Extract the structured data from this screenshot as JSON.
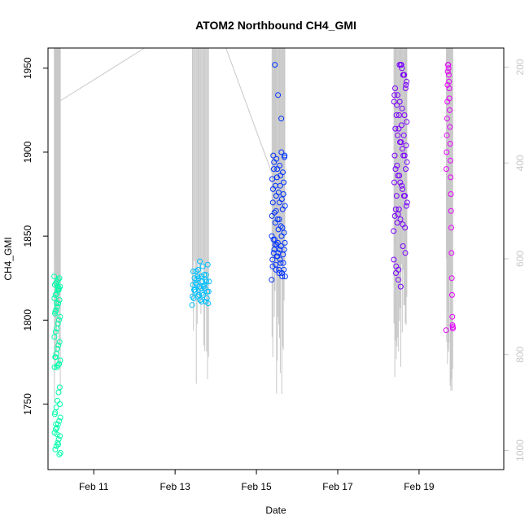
{
  "chart_data": {
    "type": "scatter",
    "title": "ATOM2 Northbound CH4_GMI",
    "xlabel": "Date",
    "ylabel": "CH4_GMI",
    "xlim": [
      "2017-02-09 21:00",
      "2017-02-21 02:00"
    ],
    "ylim": [
      1711,
      1962
    ],
    "x_ticks": [
      {
        "date": "2017-02-11",
        "label": "Feb 11"
      },
      {
        "date": "2017-02-13",
        "label": "Feb 13"
      },
      {
        "date": "2017-02-15",
        "label": "Feb 15"
      },
      {
        "date": "2017-02-17",
        "label": "Feb 17"
      },
      {
        "date": "2017-02-19",
        "label": "Feb 19"
      }
    ],
    "y_ticks": [
      1750,
      1800,
      1850,
      1900,
      1950
    ],
    "right_axis": {
      "description": "pressure profile drawn as grey lines, inverted scale",
      "lim": [
        1040,
        160
      ],
      "ticks": [
        200,
        400,
        600,
        800,
        1000
      ],
      "color": "#c8c8c8"
    },
    "grid": false,
    "legend": "none",
    "point_colors": {
      "flight_1": "#00ffaa",
      "flight_2": "#00bfff",
      "flight_3": "#0033ff",
      "flight_4": "#7a00ff",
      "flight_5": "#e600ff"
    },
    "series": [
      {
        "flight": "flight_1",
        "x_range": [
          "2017-02-10 00:40",
          "2017-02-10 04:20"
        ],
        "y": [
          1826,
          1825,
          1824,
          1823,
          1822,
          1821,
          1820,
          1819,
          1818,
          1816,
          1815,
          1813,
          1812,
          1810,
          1808,
          1806,
          1804,
          1802,
          1800,
          1798,
          1795,
          1793,
          1790,
          1787,
          1785,
          1783,
          1780,
          1778,
          1776,
          1774,
          1773,
          1772,
          1778,
          1772,
          1760,
          1757,
          1752,
          1748,
          1745,
          1742,
          1740,
          1738,
          1736,
          1735,
          1733,
          1731,
          1729,
          1727,
          1725,
          1723,
          1721,
          1720,
          1726,
          1732,
          1738,
          1744,
          1750,
          1818,
          1820,
          1810,
          1805
        ]
      },
      {
        "flight": "flight_2",
        "x_range": [
          "2017-02-13 10:00",
          "2017-02-13 20:00"
        ],
        "y": [
          1809,
          1811,
          1813,
          1815,
          1817,
          1819,
          1821,
          1823,
          1825,
          1810,
          1812,
          1814,
          1816,
          1818,
          1820,
          1822,
          1824,
          1826,
          1813,
          1815,
          1817,
          1819,
          1821,
          1823,
          1825,
          1827,
          1829,
          1811,
          1814,
          1817,
          1820,
          1823,
          1826,
          1829,
          1832,
          1818,
          1821,
          1824,
          1827,
          1830,
          1833,
          1835
        ]
      },
      {
        "flight": "flight_3",
        "x_range": [
          "2017-02-15 09:00",
          "2017-02-15 17:00"
        ],
        "y": [
          1824,
          1826,
          1828,
          1830,
          1832,
          1834,
          1836,
          1838,
          1840,
          1842,
          1844,
          1846,
          1848,
          1826,
          1828,
          1830,
          1833,
          1836,
          1839,
          1842,
          1845,
          1848,
          1852,
          1856,
          1860,
          1864,
          1868,
          1872,
          1876,
          1880,
          1884,
          1888,
          1892,
          1896,
          1898,
          1830,
          1834,
          1838,
          1842,
          1846,
          1850,
          1854,
          1858,
          1862,
          1866,
          1870,
          1874,
          1878,
          1882,
          1886,
          1890,
          1894,
          1898,
          1900,
          1840,
          1845,
          1850,
          1855,
          1860,
          1865,
          1870,
          1875,
          1880,
          1885,
          1890,
          1897,
          1920,
          1934,
          1952
        ]
      },
      {
        "flight": "flight_4",
        "x_range": [
          "2017-02-18 09:00",
          "2017-02-18 17:00"
        ],
        "y": [
          1853,
          1855,
          1857,
          1860,
          1863,
          1866,
          1870,
          1874,
          1878,
          1882,
          1886,
          1890,
          1894,
          1898,
          1902,
          1906,
          1910,
          1914,
          1918,
          1922,
          1926,
          1930,
          1934,
          1938,
          1942,
          1946,
          1950,
          1952,
          1858,
          1862,
          1868,
          1874,
          1880,
          1886,
          1892,
          1898,
          1904,
          1910,
          1916,
          1922,
          1928,
          1934,
          1940,
          1946,
          1952,
          1866,
          1874,
          1882,
          1890,
          1898,
          1906,
          1914,
          1922,
          1930,
          1938,
          1946,
          1952,
          1830,
          1832,
          1836,
          1840,
          1844,
          1820,
          1824,
          1828
        ]
      },
      {
        "flight": "flight_5",
        "x_range": [
          "2017-02-19 16:00",
          "2017-02-19 20:00"
        ],
        "y": [
          1794,
          1795,
          1796,
          1797,
          1802,
          1815,
          1825,
          1840,
          1855,
          1865,
          1875,
          1885,
          1895,
          1905,
          1915,
          1925,
          1932,
          1938,
          1942,
          1946,
          1950,
          1952,
          1952,
          1948,
          1940,
          1930,
          1920,
          1910,
          1900,
          1890
        ]
      }
    ]
  }
}
